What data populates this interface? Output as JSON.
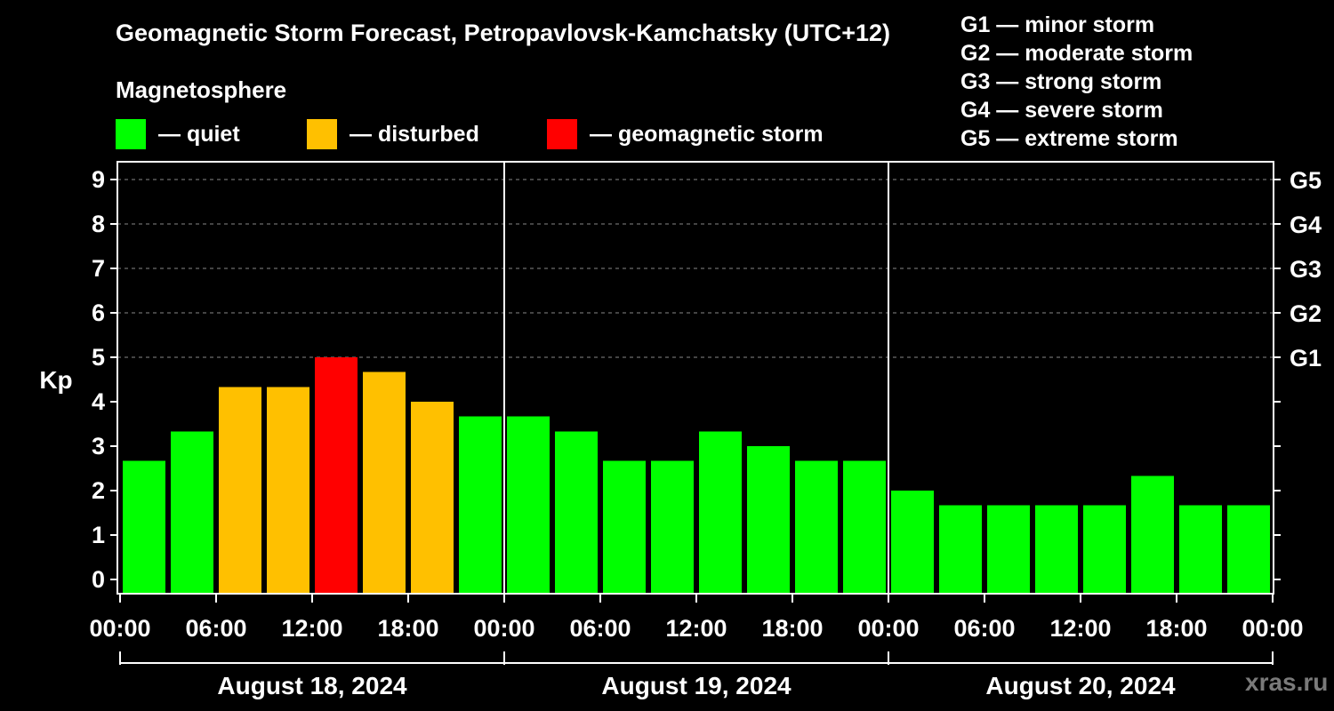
{
  "chart_data": {
    "type": "bar",
    "title": "Geomagnetic Storm Forecast, Petropavlovsk-Kamchatsky (UTC+12)",
    "subtitle": "Magnetosphere",
    "ylabel": "Kp",
    "ylim": [
      0,
      9
    ],
    "y_ticks": [
      "0",
      "1",
      "2",
      "3",
      "4",
      "5",
      "6",
      "7",
      "8",
      "9"
    ],
    "right_ticks": [
      {
        "value": 5,
        "label": "G1"
      },
      {
        "value": 6,
        "label": "G2"
      },
      {
        "value": 7,
        "label": "G3"
      },
      {
        "value": 8,
        "label": "G4"
      },
      {
        "value": 9,
        "label": "G5"
      }
    ],
    "x_tick_labels": [
      "00:00",
      "06:00",
      "12:00",
      "18:00",
      "00:00",
      "06:00",
      "12:00",
      "18:00",
      "00:00",
      "06:00",
      "12:00",
      "18:00",
      "00:00"
    ],
    "days": [
      "August 18, 2024",
      "August 19, 2024",
      "August 20, 2024"
    ],
    "legend": [
      {
        "label": "— quiet",
        "color": "#00ff00"
      },
      {
        "label": "— disturbed",
        "color": "#ffc000"
      },
      {
        "label": "— geomagnetic storm",
        "color": "#ff0000"
      }
    ],
    "storm_levels": [
      "G1 — minor storm",
      "G2 — moderate storm",
      "G3 — strong storm",
      "G4 — severe storm",
      "G5 — extreme storm"
    ],
    "grid": true,
    "values": [
      2.67,
      3.33,
      4.33,
      4.33,
      5.0,
      4.67,
      4.0,
      3.67,
      3.67,
      3.33,
      2.67,
      2.67,
      3.33,
      3.0,
      2.67,
      2.67,
      2.0,
      1.67,
      1.67,
      1.67,
      1.67,
      2.33,
      1.67,
      1.67
    ],
    "colors": [
      "#00ff00",
      "#00ff00",
      "#ffc000",
      "#ffc000",
      "#ff0000",
      "#ffc000",
      "#ffc000",
      "#00ff00",
      "#00ff00",
      "#00ff00",
      "#00ff00",
      "#00ff00",
      "#00ff00",
      "#00ff00",
      "#00ff00",
      "#00ff00",
      "#00ff00",
      "#00ff00",
      "#00ff00",
      "#00ff00",
      "#00ff00",
      "#00ff00",
      "#00ff00",
      "#00ff00"
    ]
  },
  "watermark": "xras.ru"
}
